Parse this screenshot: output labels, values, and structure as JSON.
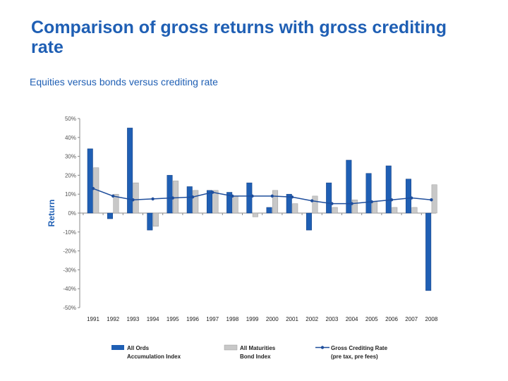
{
  "title": "Comparison of gross returns with gross crediting rate",
  "subtitle": "Equities versus bonds versus crediting rate",
  "colors": {
    "title": "#1f5fb4",
    "equities": "#1f5fb4",
    "bonds": "#c8c8c8",
    "crediting": "#1f4e9c"
  },
  "chart_data": {
    "type": "bar",
    "ylabel": "Return",
    "ylim": [
      -50,
      50
    ],
    "y_ticks": [
      "50%",
      "40%",
      "30%",
      "20%",
      "10%",
      "0%",
      "-10%",
      "-20%",
      "-30%",
      "-40%",
      "-50%"
    ],
    "grid": false,
    "legend_position": "bottom",
    "categories": [
      "1991",
      "1992",
      "1993",
      "1994",
      "1995",
      "1996",
      "1997",
      "1998",
      "1999",
      "2000",
      "2001",
      "2002",
      "2003",
      "2004",
      "2005",
      "2006",
      "2007",
      "2008"
    ],
    "series": [
      {
        "name": "All Ords Accumulation Index",
        "type": "bar",
        "values": [
          34,
          -3,
          45,
          -9,
          20,
          14,
          12,
          11,
          16,
          3,
          10,
          -9,
          16,
          28,
          21,
          25,
          18,
          -41
        ]
      },
      {
        "name": "All Maturities Bond Index",
        "type": "bar",
        "values": [
          24,
          10,
          16,
          -7,
          17,
          12,
          12,
          9,
          -2,
          12,
          5,
          9,
          3,
          7,
          6,
          3,
          3,
          15
        ]
      },
      {
        "name": "Gross Crediting Rate (pre tax, pre fees)",
        "type": "line",
        "values": [
          13,
          9,
          7,
          7.5,
          8,
          8.5,
          11,
          9,
          9,
          9,
          8.5,
          6.5,
          5,
          5,
          6,
          7,
          8,
          7
        ]
      }
    ],
    "legend": [
      {
        "series": 0,
        "line1": "All Ords",
        "line2": "Accumulation Index"
      },
      {
        "series": 1,
        "line1": "All Maturities",
        "line2": "Bond Index"
      },
      {
        "series": 2,
        "line1": "Gross Crediting Rate",
        "line2": "(pre tax, pre fees)"
      }
    ]
  }
}
